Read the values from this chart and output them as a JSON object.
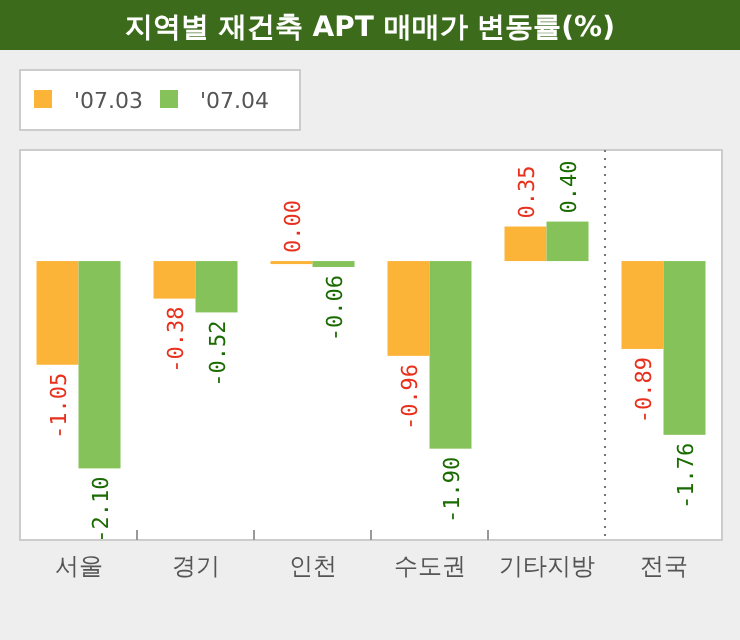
{
  "chart_data": {
    "type": "bar",
    "title": "지역별 재건축 APT 매매가 변동률(%)",
    "categories": [
      "서울",
      "경기",
      "인천",
      "수도권",
      "기타지방",
      "전국"
    ],
    "series": [
      {
        "name": "'07.03",
        "color": "#fbb437",
        "values": [
          -1.05,
          -0.38,
          0.0,
          -0.96,
          0.35,
          -0.89
        ],
        "value_labels": [
          "-1.05",
          "-0.38",
          "0.00",
          "-0.96",
          "0.35",
          "-0.89"
        ]
      },
      {
        "name": "'07.04",
        "color": "#86c25a",
        "values": [
          -2.1,
          -0.52,
          -0.06,
          -1.9,
          0.4,
          -1.76
        ],
        "value_labels": [
          "-2.10",
          "-0.52",
          "-0.06",
          "-1.90",
          "0.40",
          "-1.76"
        ]
      }
    ],
    "legend": "top left"
  }
}
